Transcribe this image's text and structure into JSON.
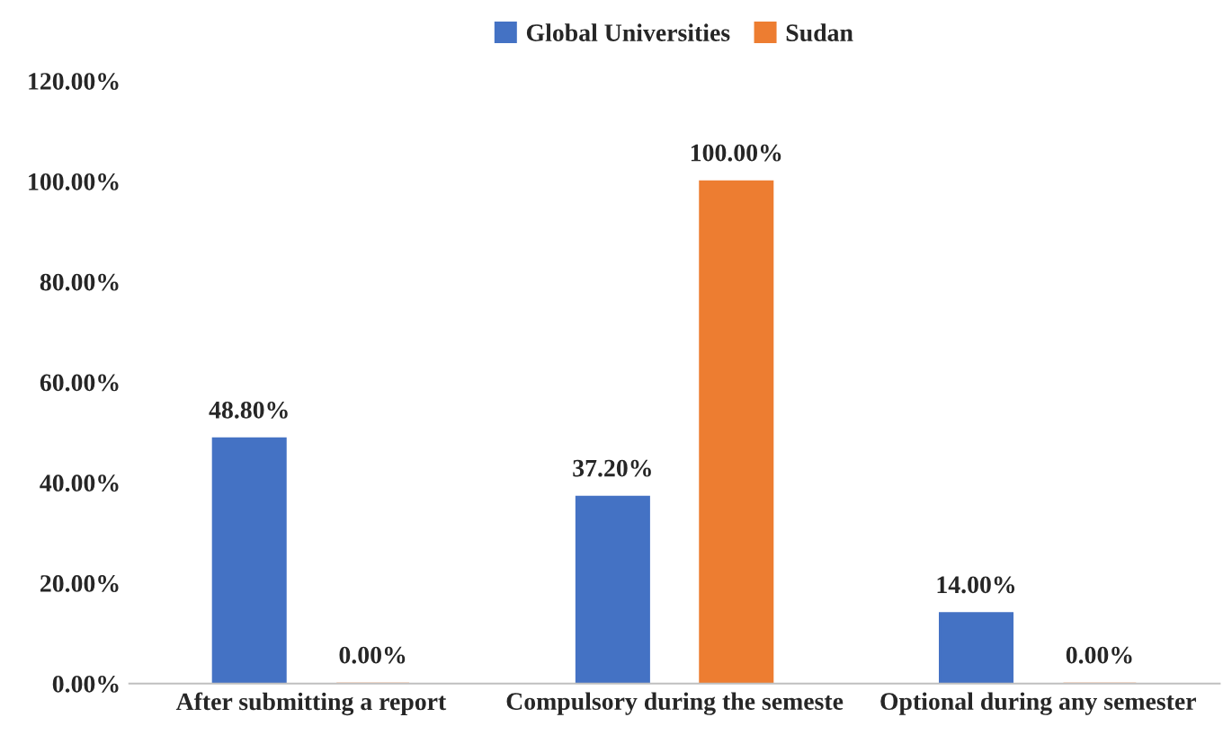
{
  "chart_data": {
    "type": "bar",
    "categories": [
      "After submitting a report",
      "Compulsory during the semeste",
      "Optional during any semester"
    ],
    "series": [
      {
        "name": "Global Universities",
        "color": "#4472c4",
        "values": [
          48.8,
          37.2,
          14.0
        ],
        "value_labels": [
          "48.80%",
          "37.20%",
          "14.00%"
        ]
      },
      {
        "name": "Sudan",
        "color": "#ed7d31",
        "values": [
          0.0,
          100.0,
          0.0
        ],
        "value_labels": [
          "0.00%",
          "100.00%",
          "0.00%"
        ]
      }
    ],
    "ylim": [
      0,
      120
    ],
    "yticks": [
      {
        "value": 0,
        "label": "0.00%"
      },
      {
        "value": 20,
        "label": "20.00%"
      },
      {
        "value": 40,
        "label": "40.00%"
      },
      {
        "value": 60,
        "label": "60.00%"
      },
      {
        "value": 80,
        "label": "80.00%"
      },
      {
        "value": 100,
        "label": "100.00%"
      },
      {
        "value": 120,
        "label": "120.00%"
      }
    ],
    "grid": false,
    "legend": "top"
  }
}
